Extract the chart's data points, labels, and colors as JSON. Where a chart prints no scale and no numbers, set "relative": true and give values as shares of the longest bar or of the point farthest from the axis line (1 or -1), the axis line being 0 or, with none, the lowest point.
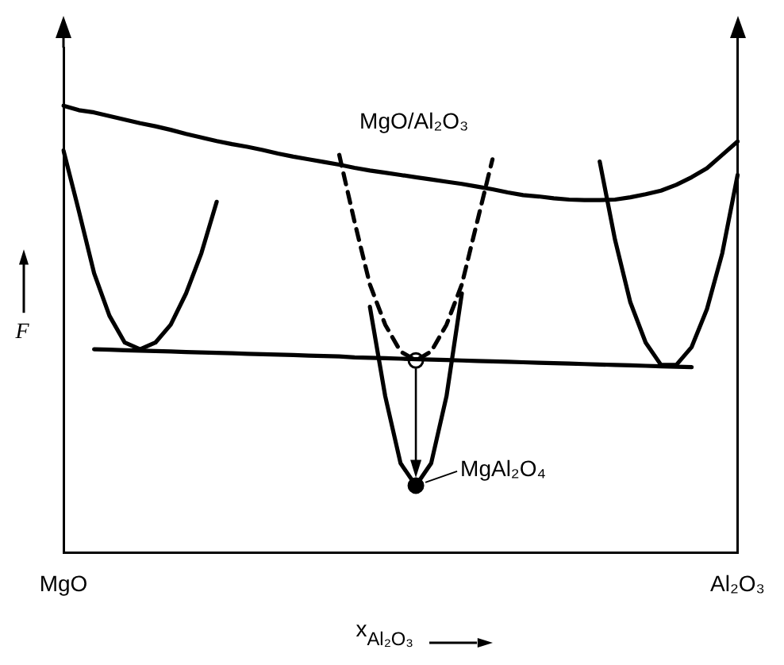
{
  "chart_data": {
    "type": "line",
    "relative": true,
    "xlabel": "x$_{Al₂O₃}$",
    "ylabel": "F",
    "tick_labels": "x",
    "grid": false,
    "legend": false,
    "marker": "none",
    "categories": [
      "MgO",
      null,
      null,
      null,
      null,
      null,
      null,
      null,
      null,
      null,
      null,
      null,
      null,
      null,
      null,
      null,
      null,
      null,
      null,
      null,
      null,
      null,
      null,
      null,
      null,
      null,
      null,
      null,
      null,
      null,
      null,
      null,
      null,
      null,
      null,
      null,
      null,
      null,
      null,
      null,
      null,
      null,
      null,
      null,
      "Al₂O₃"
    ],
    "annotations": [
      "MgO/Al₂O₃",
      "MgAl₂O₄"
    ],
    "series": [
      {
        "color": "#000000",
        "values": [
          1.0,
          0.99,
          0.985,
          0.977,
          0.969,
          0.961,
          0.954,
          0.946,
          0.937,
          0.929,
          0.921,
          0.914,
          0.908,
          0.901,
          0.893,
          0.886,
          0.88,
          0.874,
          0.868,
          0.861,
          0.855,
          0.85,
          0.845,
          0.84,
          0.835,
          0.83,
          0.825,
          0.819,
          0.813,
          0.806,
          0.8,
          0.797,
          0.793,
          0.79,
          0.789,
          0.789,
          0.79,
          0.795,
          0.802,
          0.81,
          0.823,
          0.84,
          0.86,
          0.89,
          0.92
        ]
      },
      {
        "color": "#000000",
        "values": [
          0.9,
          0.765,
          0.625,
          0.53,
          0.47,
          0.455,
          0.47,
          0.51,
          0.58,
          0.67,
          0.785,
          null,
          null,
          null,
          null,
          null,
          null,
          null,
          null,
          null,
          null,
          null,
          null,
          null,
          null,
          null,
          null,
          null,
          null,
          null,
          null,
          null,
          null,
          null,
          null,
          null,
          null,
          null,
          null,
          null,
          null,
          null,
          null,
          null,
          null
        ]
      },
      {
        "color": "#000000",
        "line_style": "dashed",
        "values": [
          null,
          null,
          null,
          null,
          null,
          null,
          null,
          null,
          null,
          null,
          null,
          null,
          null,
          null,
          null,
          null,
          null,
          null,
          0.89,
          0.74,
          0.6,
          0.51,
          0.45,
          0.43,
          0.45,
          0.51,
          0.6,
          0.74,
          0.88,
          null,
          null,
          null,
          null,
          null,
          null,
          null,
          null,
          null,
          null,
          null,
          null,
          null,
          null,
          null,
          null
        ]
      },
      {
        "color": "#000000",
        "values": [
          null,
          null,
          null,
          null,
          null,
          null,
          null,
          null,
          null,
          null,
          null,
          null,
          null,
          null,
          null,
          null,
          null,
          null,
          null,
          null,
          0.55,
          0.35,
          0.2,
          0.15,
          0.2,
          0.35,
          0.58,
          null,
          null,
          null,
          null,
          null,
          null,
          null,
          null,
          null,
          null,
          null,
          null,
          null,
          null,
          null,
          null,
          null,
          null
        ]
      },
      {
        "color": "#000000",
        "values": [
          null,
          null,
          null,
          null,
          null,
          null,
          null,
          null,
          null,
          null,
          null,
          null,
          null,
          null,
          null,
          null,
          null,
          null,
          null,
          null,
          null,
          null,
          null,
          null,
          null,
          null,
          null,
          null,
          null,
          null,
          null,
          null,
          null,
          null,
          null,
          0.875,
          0.7,
          0.56,
          0.47,
          0.42,
          0.42,
          0.46,
          0.545,
          0.67,
          0.845
        ]
      },
      {
        "color": "#000000",
        "values": [
          null,
          null,
          0.455,
          0.454,
          0.453,
          0.452,
          0.451,
          0.45,
          0.449,
          0.448,
          0.447,
          0.446,
          0.445,
          0.444,
          0.443,
          0.442,
          0.441,
          0.44,
          0.439,
          0.437,
          0.436,
          0.435,
          0.434,
          0.433,
          0.432,
          0.431,
          0.43,
          0.429,
          0.428,
          0.427,
          0.426,
          0.425,
          0.424,
          0.423,
          0.422,
          0.421,
          0.42,
          0.419,
          0.418,
          0.417,
          0.416,
          0.415,
          null,
          null,
          null
        ]
      },
      {
        "type": "scatter",
        "marker": "circle",
        "color": "#ffffff",
        "values": [
          null,
          null,
          null,
          null,
          null,
          null,
          null,
          null,
          null,
          null,
          null,
          null,
          null,
          null,
          null,
          null,
          null,
          null,
          null,
          null,
          null,
          null,
          null,
          0.43,
          null,
          null,
          null,
          null,
          null,
          null,
          null,
          null,
          null,
          null,
          null,
          null,
          null,
          null,
          null,
          null,
          null,
          null,
          null,
          null,
          null
        ]
      },
      {
        "type": "scatter",
        "marker": "circle",
        "color": "#000000",
        "values": [
          null,
          null,
          null,
          null,
          null,
          null,
          null,
          null,
          null,
          null,
          null,
          null,
          null,
          null,
          null,
          null,
          null,
          null,
          null,
          null,
          null,
          null,
          null,
          0.15,
          null,
          null,
          null,
          null,
          null,
          null,
          null,
          null,
          null,
          null,
          null,
          null,
          null,
          null,
          null,
          null,
          null,
          null,
          null,
          null,
          null
        ]
      }
    ]
  }
}
